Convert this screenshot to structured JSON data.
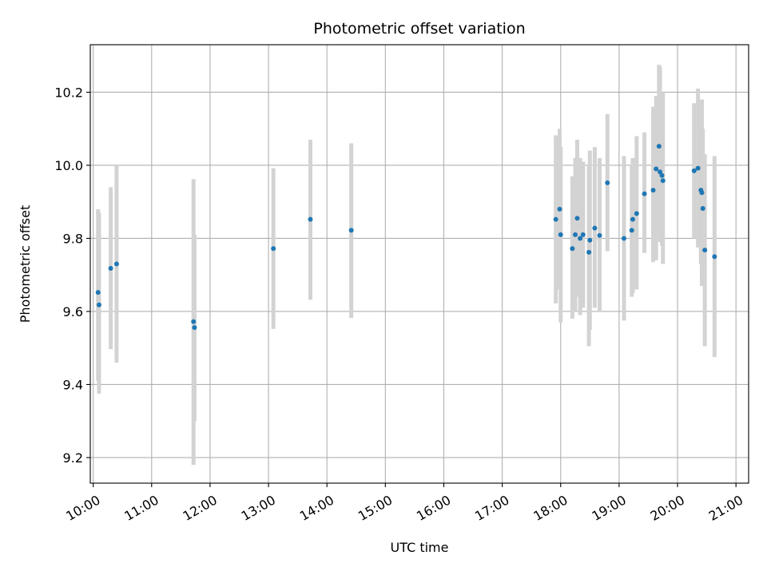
{
  "chart_data": {
    "type": "scatter",
    "title": "Photometric offset variation",
    "xlabel": "UTC time",
    "ylabel": "Photometric offset",
    "xlim": [
      "09:57",
      "21:13"
    ],
    "ylim": [
      9.13,
      10.33
    ],
    "x_ticks": [
      "10:00",
      "11:00",
      "12:00",
      "13:00",
      "14:00",
      "15:00",
      "16:00",
      "17:00",
      "18:00",
      "19:00",
      "20:00",
      "21:00"
    ],
    "y_ticks": [
      9.2,
      9.4,
      9.6,
      9.8,
      10.0,
      10.2
    ],
    "y_tick_labels": [
      "9.2",
      "9.4",
      "9.6",
      "9.8",
      "10.0",
      "10.2"
    ],
    "grid": true,
    "colors": {
      "marker": "#1f77b4",
      "errorbar": "#d3d3d3",
      "grid": "#b0b0b0"
    },
    "points": [
      {
        "t": "10:05",
        "y": 9.652,
        "lo": 9.41,
        "hi": 9.88
      },
      {
        "t": "10:06",
        "y": 9.618,
        "lo": 9.375,
        "hi": 9.87
      },
      {
        "t": "10:18",
        "y": 9.718,
        "lo": 9.497,
        "hi": 9.94
      },
      {
        "t": "10:24",
        "y": 9.73,
        "lo": 9.46,
        "hi": 10.0
      },
      {
        "t": "11:43",
        "y": 9.572,
        "lo": 9.18,
        "hi": 9.962
      },
      {
        "t": "11:44",
        "y": 9.556,
        "lo": 9.3,
        "hi": 9.81
      },
      {
        "t": "13:05",
        "y": 9.772,
        "lo": 9.552,
        "hi": 9.992
      },
      {
        "t": "13:43",
        "y": 9.852,
        "lo": 9.632,
        "hi": 10.07
      },
      {
        "t": "14:25",
        "y": 9.822,
        "lo": 9.582,
        "hi": 10.06
      },
      {
        "t": "17:55",
        "y": 9.852,
        "lo": 9.622,
        "hi": 10.082
      },
      {
        "t": "17:59",
        "y": 9.88,
        "lo": 9.66,
        "hi": 10.1
      },
      {
        "t": "18:00",
        "y": 9.81,
        "lo": 9.57,
        "hi": 10.05
      },
      {
        "t": "18:12",
        "y": 9.772,
        "lo": 9.58,
        "hi": 9.97
      },
      {
        "t": "18:15",
        "y": 9.81,
        "lo": 9.6,
        "hi": 10.02
      },
      {
        "t": "18:17",
        "y": 9.855,
        "lo": 9.64,
        "hi": 10.07
      },
      {
        "t": "18:20",
        "y": 9.8,
        "lo": 9.59,
        "hi": 10.02
      },
      {
        "t": "18:23",
        "y": 9.81,
        "lo": 9.61,
        "hi": 10.01
      },
      {
        "t": "18:29",
        "y": 9.762,
        "lo": 9.505,
        "hi": 10.0
      },
      {
        "t": "18:30",
        "y": 9.795,
        "lo": 9.55,
        "hi": 10.04
      },
      {
        "t": "18:35",
        "y": 9.828,
        "lo": 9.61,
        "hi": 10.05
      },
      {
        "t": "18:40",
        "y": 9.808,
        "lo": 9.6,
        "hi": 10.02
      },
      {
        "t": "18:48",
        "y": 9.952,
        "lo": 9.765,
        "hi": 10.14
      },
      {
        "t": "19:05",
        "y": 9.8,
        "lo": 9.575,
        "hi": 10.025
      },
      {
        "t": "19:13",
        "y": 9.822,
        "lo": 9.64,
        "hi": 10.0
      },
      {
        "t": "19:14",
        "y": 9.852,
        "lo": 9.65,
        "hi": 10.02
      },
      {
        "t": "19:18",
        "y": 9.868,
        "lo": 9.66,
        "hi": 10.08
      },
      {
        "t": "19:26",
        "y": 9.922,
        "lo": 9.76,
        "hi": 10.09
      },
      {
        "t": "19:35",
        "y": 9.932,
        "lo": 9.735,
        "hi": 10.16
      },
      {
        "t": "19:38",
        "y": 9.99,
        "lo": 9.74,
        "hi": 10.19
      },
      {
        "t": "19:41",
        "y": 10.052,
        "lo": 9.83,
        "hi": 10.275
      },
      {
        "t": "19:42",
        "y": 9.982,
        "lo": 9.79,
        "hi": 10.27
      },
      {
        "t": "19:44",
        "y": 9.972,
        "lo": 9.78,
        "hi": 10.2
      },
      {
        "t": "19:45",
        "y": 9.958,
        "lo": 9.73,
        "hi": 10.2
      },
      {
        "t": "20:17",
        "y": 9.985,
        "lo": 9.8,
        "hi": 10.17
      },
      {
        "t": "20:21",
        "y": 9.992,
        "lo": 9.775,
        "hi": 10.21
      },
      {
        "t": "20:24",
        "y": 9.932,
        "lo": 9.73,
        "hi": 10.17
      },
      {
        "t": "20:25",
        "y": 9.925,
        "lo": 9.67,
        "hi": 10.18
      },
      {
        "t": "20:26",
        "y": 9.882,
        "lo": 9.68,
        "hi": 10.1
      },
      {
        "t": "20:28",
        "y": 9.768,
        "lo": 9.505,
        "hi": 10.03
      },
      {
        "t": "20:38",
        "y": 9.75,
        "lo": 9.475,
        "hi": 10.025
      }
    ]
  }
}
